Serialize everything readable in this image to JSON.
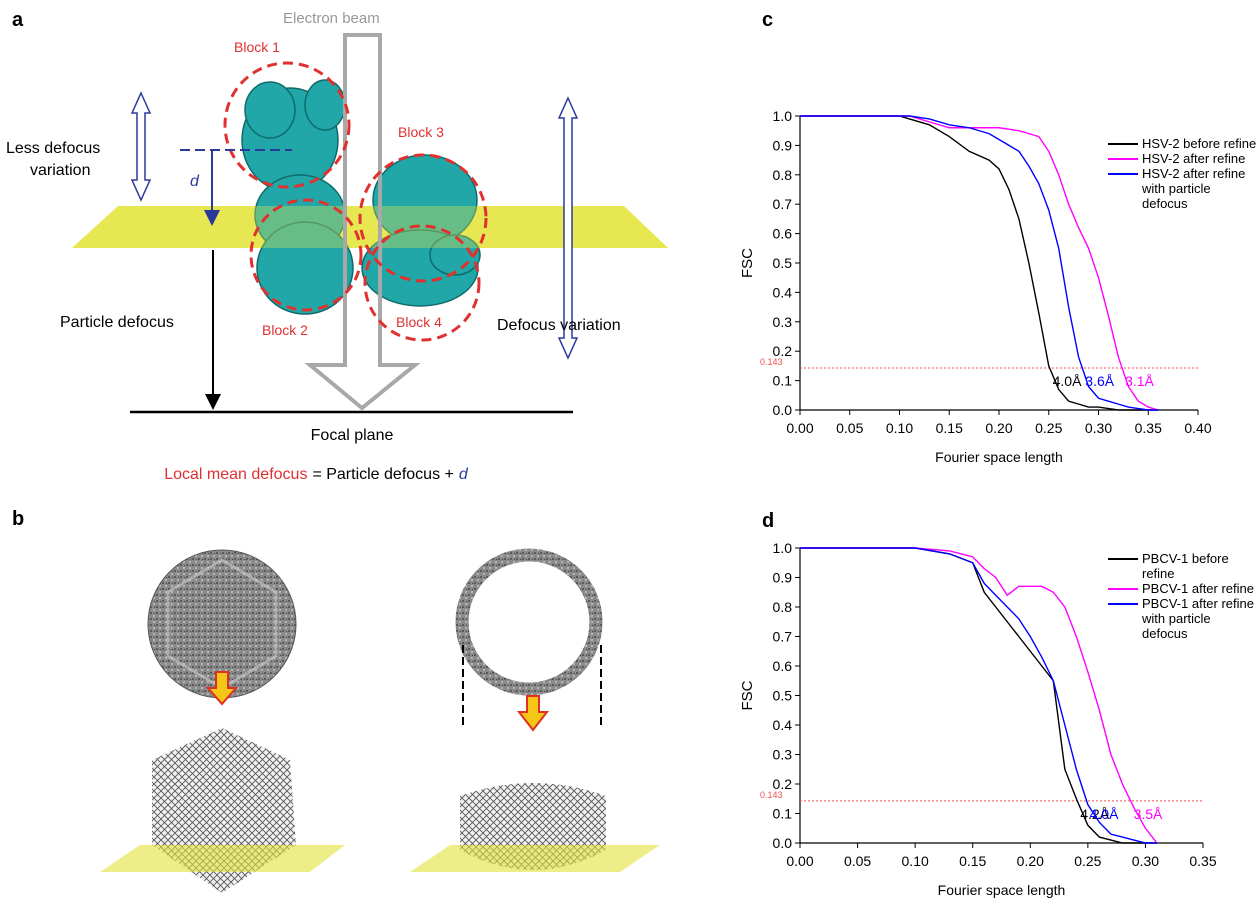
{
  "panel_labels": [
    "a",
    "b",
    "c",
    "d"
  ],
  "diagram_a": {
    "beam_label": "Electron beam",
    "blocks": [
      "Block 1",
      "Block 2",
      "Block 3",
      "Block 4"
    ],
    "less_defocus_variation": [
      "Less defocus",
      "variation"
    ],
    "d_label": "d",
    "particle_defocus": "Particle defocus",
    "defocus_variation": "Defocus variation",
    "focal_plane": "Focal plane",
    "formula": [
      "Local mean defocus",
      "= Particle defocus +",
      "d"
    ]
  },
  "chart_data": [
    {
      "type": "line",
      "ylabel": "FSC",
      "xlabel": "Fourier space length",
      "x": [
        0,
        0.05,
        0.1,
        0.11,
        0.13,
        0.15,
        0.17,
        0.19,
        0.2,
        0.21,
        0.22,
        0.23,
        0.24,
        0.25,
        0.26,
        0.27,
        0.28,
        0.29,
        0.3,
        0.31,
        0.32,
        0.33,
        0.34,
        0.35,
        0.36
      ],
      "series": [
        {
          "name": "HSV-2 before refine",
          "color": "#000000",
          "resolution": "4.0Å",
          "values": [
            1,
            1,
            1,
            0.99,
            0.97,
            0.93,
            0.88,
            0.85,
            0.82,
            0.75,
            0.65,
            0.5,
            0.33,
            0.15,
            0.07,
            0.03,
            0.02,
            0.01,
            0.01,
            0.005,
            0,
            0,
            0,
            0,
            0
          ]
        },
        {
          "name": "HSV-2 after refine",
          "color": "#ff00ff",
          "resolution": "3.1Å",
          "values": [
            1,
            1,
            1,
            1,
            0.98,
            0.96,
            0.96,
            0.96,
            0.96,
            0.955,
            0.95,
            0.94,
            0.93,
            0.88,
            0.8,
            0.7,
            0.62,
            0.55,
            0.45,
            0.32,
            0.18,
            0.08,
            0.03,
            0.01,
            0
          ]
        },
        {
          "name": "HSV-2 after refine\nwith particle defocus",
          "color": "#0000ff",
          "resolution": "3.6Å",
          "values": [
            1,
            1,
            1,
            1,
            0.99,
            0.97,
            0.96,
            0.94,
            0.92,
            0.9,
            0.88,
            0.83,
            0.77,
            0.68,
            0.55,
            0.35,
            0.18,
            0.08,
            0.04,
            0.03,
            0.02,
            0.01,
            0.005,
            0,
            0
          ]
        }
      ],
      "threshold": 0.143,
      "xlim": [
        0,
        0.4
      ],
      "xticks": [
        {
          "value": 0,
          "label": "0.00"
        },
        {
          "value": 0.05,
          "label": "0.05"
        },
        {
          "value": 0.1,
          "label": "0.10"
        },
        {
          "value": 0.15,
          "label": "0.15"
        },
        {
          "value": 0.2,
          "label": "0.20"
        },
        {
          "value": 0.25,
          "label": "0.25"
        },
        {
          "value": 0.3,
          "label": "0.30"
        },
        {
          "value": 0.35,
          "label": "0.35"
        },
        {
          "value": 0.4,
          "label": "0.40"
        }
      ],
      "ylim": [
        0,
        1
      ],
      "yticks": [
        {
          "value": 0,
          "label": "0.0"
        },
        0.1,
        0.2,
        0.3,
        0.4,
        0.5,
        0.6,
        0.7,
        0.8,
        0.9,
        {
          "value": 1,
          "label": "1.0"
        }
      ]
    },
    {
      "type": "line",
      "ylabel": "FSC",
      "xlabel": "Fourier space length",
      "x": [
        0,
        0.05,
        0.1,
        0.13,
        0.15,
        0.16,
        0.17,
        0.18,
        0.19,
        0.2,
        0.21,
        0.22,
        0.23,
        0.24,
        0.25,
        0.26,
        0.27,
        0.28,
        0.29,
        0.3,
        0.31
      ],
      "series": [
        {
          "name": "PBCV-1 before refine",
          "color": "#000000",
          "resolution": "4.2Å",
          "values": [
            1,
            1,
            1,
            0.98,
            0.95,
            0.85,
            0.8,
            0.75,
            0.7,
            0.65,
            0.6,
            0.55,
            0.25,
            0.15,
            0.06,
            0.02,
            0.01,
            0,
            0,
            0,
            0
          ]
        },
        {
          "name": "PBCV-1 after refine",
          "color": "#ff00ff",
          "resolution": "3.5Å",
          "values": [
            1,
            1,
            1,
            0.99,
            0.97,
            0.93,
            0.9,
            0.84,
            0.87,
            0.87,
            0.87,
            0.85,
            0.8,
            0.7,
            0.58,
            0.45,
            0.3,
            0.2,
            0.12,
            0.05,
            0
          ]
        },
        {
          "name": "PBCV-1 after refine\nwith particle defocus",
          "color": "#0000ff",
          "resolution": "4.0Å",
          "values": [
            1,
            1,
            1,
            0.98,
            0.95,
            0.88,
            0.84,
            0.8,
            0.76,
            0.7,
            0.63,
            0.55,
            0.4,
            0.25,
            0.13,
            0.07,
            0.03,
            0.02,
            0.01,
            0,
            0
          ]
        }
      ],
      "threshold": 0.143,
      "xlim": [
        0,
        0.35
      ],
      "xticks": [
        {
          "value": 0,
          "label": "0.00"
        },
        {
          "value": 0.05,
          "label": "0.05"
        },
        {
          "value": 0.1,
          "label": "0.10"
        },
        {
          "value": 0.15,
          "label": "0.15"
        },
        {
          "value": 0.2,
          "label": "0.20"
        },
        {
          "value": 0.25,
          "label": "0.25"
        },
        {
          "value": 0.3,
          "label": "0.30"
        },
        {
          "value": 0.35,
          "label": "0.35"
        }
      ],
      "ylim": [
        0,
        1
      ],
      "yticks": [
        {
          "value": 0,
          "label": "0.0"
        },
        0.1,
        0.2,
        0.3,
        0.4,
        0.5,
        0.6,
        0.7,
        0.8,
        0.9,
        {
          "value": 1,
          "label": "1.0"
        }
      ]
    }
  ]
}
